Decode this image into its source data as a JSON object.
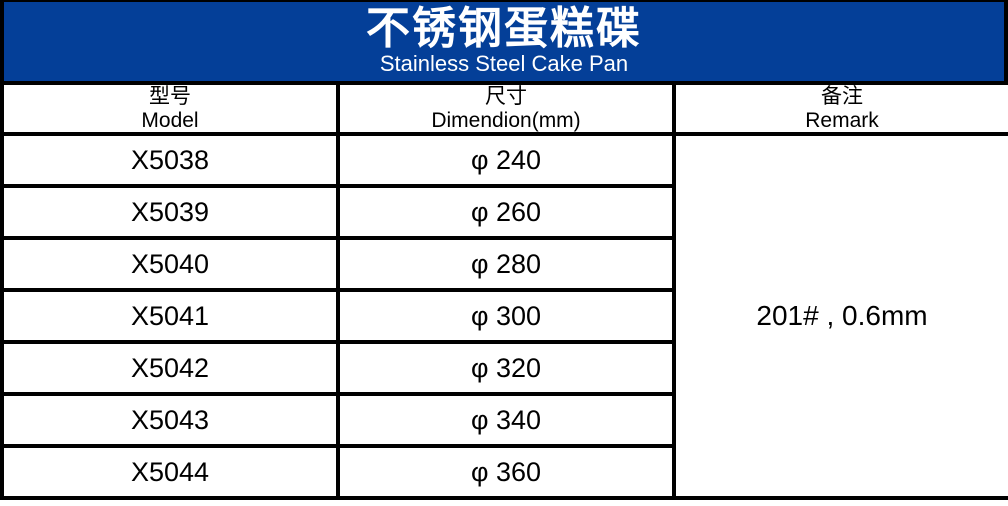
{
  "banner": {
    "title_zh": "不锈钢蛋糕碟",
    "title_en": "Stainless Steel Cake Pan"
  },
  "table": {
    "header": {
      "model_zh": "型号",
      "model_en": "Model",
      "dimension_zh": "尺寸",
      "dimension_en": "Dimendion(mm)",
      "remark_zh": "备注",
      "remark_en": "Remark"
    },
    "rows": [
      {
        "model": "X5038",
        "dimension": "φ 240"
      },
      {
        "model": "X5039",
        "dimension": "φ 260"
      },
      {
        "model": "X5040",
        "dimension": "φ 280"
      },
      {
        "model": "X5041",
        "dimension": "φ 300"
      },
      {
        "model": "X5042",
        "dimension": "φ 320"
      },
      {
        "model": "X5043",
        "dimension": "φ 340"
      },
      {
        "model": "X5044",
        "dimension": "φ 360"
      }
    ],
    "remark": "201# , 0.6mm"
  },
  "colors": {
    "banner_bg": "#043f98",
    "banner_text": "#ffffff",
    "border": "#000000",
    "background": "#ffffff"
  }
}
